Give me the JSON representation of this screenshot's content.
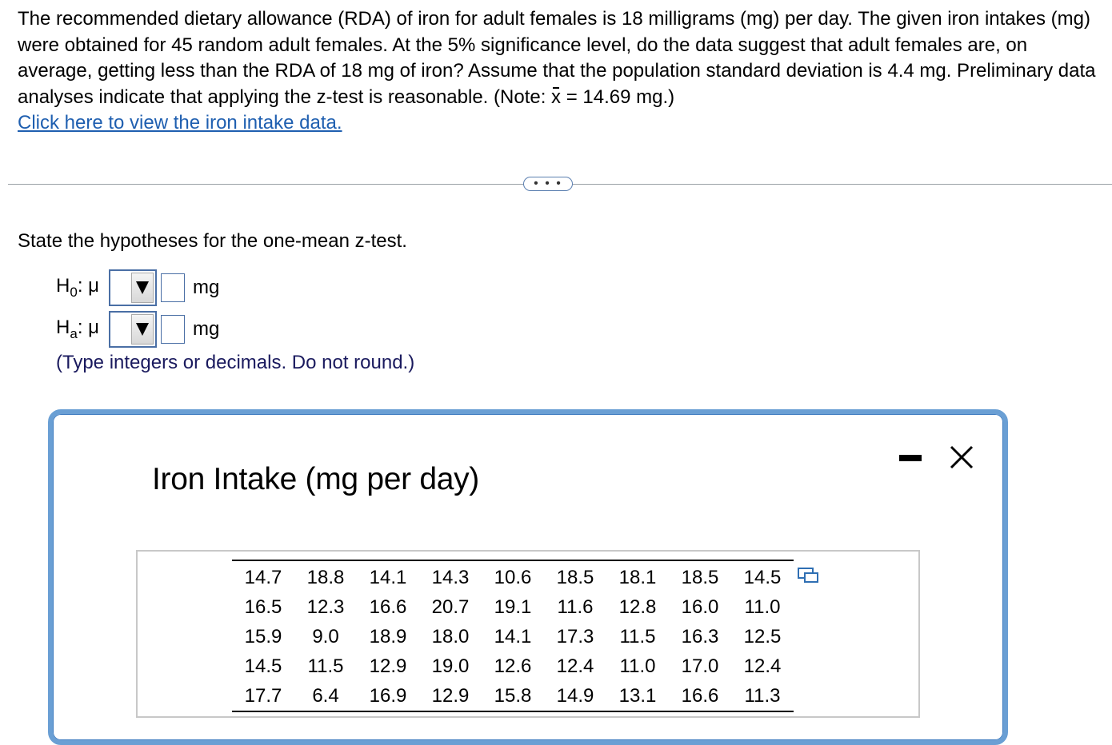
{
  "question": {
    "text_before": "The recommended dietary allowance (RDA) of iron for adult females is 18 milligrams (mg) per day. The given iron intakes (mg) were obtained for 45 random adult females. At the 5% significance level, do the data suggest that adult females are, on average, getting less than the RDA of 18 mg of iron? Assume that the population standard deviation is 4.4 mg. Preliminary data analyses indicate that applying the z-test is reasonable. (Note: ",
    "xbar_symbol": "x",
    "text_after": " = 14.69 mg.)",
    "link_text": "Click here to view the iron intake data."
  },
  "divider": {
    "ellipsis": "• • •"
  },
  "prompt": "State the hypotheses for the one-mean z-test.",
  "hypotheses": {
    "h0_letter": "H",
    "h0_sub": "0",
    "h0_mu": ": μ",
    "ha_letter": "H",
    "ha_sub": "a",
    "ha_mu": ": μ",
    "unit": "mg",
    "h0_value": "",
    "ha_value": ""
  },
  "note": "(Type integers or decimals. Do not round.)",
  "popup": {
    "title": "Iron Intake (mg per day)",
    "minimize_icon": "minimize-icon",
    "close_icon": "close-icon",
    "copy_icon": "copy-icon",
    "rows": [
      [
        "14.7",
        "18.8",
        "14.1",
        "14.3",
        "10.6",
        "18.5",
        "18.1",
        "18.5",
        "14.5"
      ],
      [
        "16.5",
        "12.3",
        "16.6",
        "20.7",
        "19.1",
        "11.6",
        "12.8",
        "16.0",
        "11.0"
      ],
      [
        "15.9",
        "9.0",
        "18.9",
        "18.0",
        "14.1",
        "17.3",
        "11.5",
        "16.3",
        "12.5"
      ],
      [
        "14.5",
        "11.5",
        "12.9",
        "19.0",
        "12.6",
        "12.4",
        "11.0",
        "17.0",
        "12.4"
      ],
      [
        "17.7",
        "6.4",
        "16.9",
        "12.9",
        "15.8",
        "14.9",
        "13.1",
        "16.6",
        "11.3"
      ]
    ]
  },
  "colors": {
    "link": "#1f5fb0",
    "panel_border": "#6a9fd4",
    "input_border": "#4a6fa5",
    "note": "#1a1a5e"
  }
}
